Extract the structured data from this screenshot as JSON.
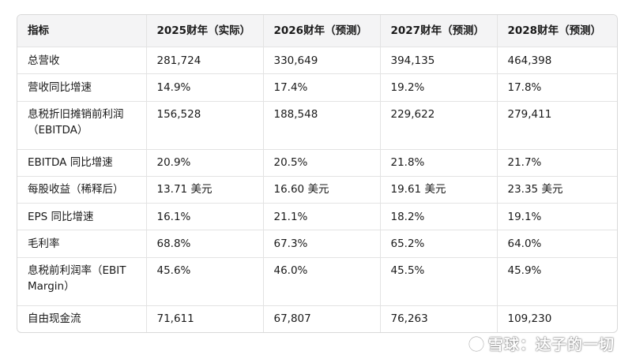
{
  "table": {
    "headers": [
      "指标",
      "2025财年（实际）",
      "2026财年（预测）",
      "2027财年（预测）",
      "2028财年（预测）"
    ],
    "rows": [
      [
        "总营收",
        "281,724",
        "330,649",
        "394,135",
        "464,398"
      ],
      [
        "营收同比增速",
        "14.9%",
        "17.4%",
        "19.2%",
        "17.8%"
      ],
      [
        "息税折旧摊销前利润（EBITDA）",
        "156,528",
        "188,548",
        "229,622",
        "279,411"
      ],
      [
        "EBITDA 同比增速",
        "20.9%",
        "20.5%",
        "21.8%",
        "21.7%"
      ],
      [
        "每股收益（稀释后）",
        "13.71 美元",
        "16.60 美元",
        "19.61 美元",
        "23.35 美元"
      ],
      [
        "EPS 同比增速",
        "16.1%",
        "21.1%",
        "18.2%",
        "19.1%"
      ],
      [
        "毛利率",
        "68.8%",
        "67.3%",
        "65.2%",
        "64.0%"
      ],
      [
        "息税前利润率（EBIT Margin）",
        "45.6%",
        "46.0%",
        "45.5%",
        "45.9%"
      ],
      [
        "自由现金流",
        "71,611",
        "67,807",
        "76,263",
        "109,230"
      ]
    ]
  },
  "watermark": {
    "text": "雪球：达子的一切",
    "icon": "snowball-logo-icon"
  },
  "colors": {
    "header_bg": "#f4f4f5",
    "border": "#e3e3e3",
    "text": "#1a1a1a"
  }
}
